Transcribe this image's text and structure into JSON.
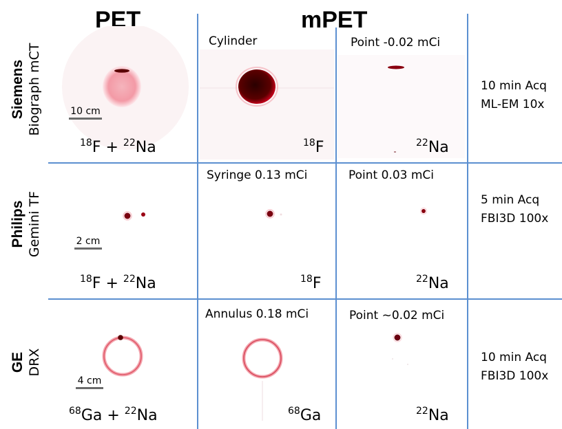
{
  "columns": {
    "pet": "PET",
    "mpet": "mPET"
  },
  "rows": [
    {
      "vendor": "Siemens",
      "model": "Biograph mCT",
      "scale": "10 cm",
      "pet_isotope": {
        "a_mass": "18",
        "a_sym": "F",
        "plus": " + ",
        "b_mass": "22",
        "b_sym": "Na"
      },
      "mpet1_title": "Cylinder",
      "mpet1_isotope": {
        "mass": "18",
        "sym": "F"
      },
      "mpet2_title": "Point -0.02 mCi",
      "mpet2_isotope": {
        "mass": "22",
        "sym": "Na"
      },
      "acq_line1": "10 min Acq",
      "acq_line2": "ML-EM 10x"
    },
    {
      "vendor": "Philips",
      "model": "Gemini TF",
      "scale": "2 cm",
      "pet_isotope": {
        "a_mass": "18",
        "a_sym": "F",
        "plus": " + ",
        "b_mass": "22",
        "b_sym": "Na"
      },
      "mpet1_title": "Syringe 0.13 mCi",
      "mpet1_isotope": {
        "mass": "18",
        "sym": "F"
      },
      "mpet2_title": "Point 0.03 mCi",
      "mpet2_isotope": {
        "mass": "22",
        "sym": "Na"
      },
      "acq_line1": "5 min Acq",
      "acq_line2": "FBI3D 100x"
    },
    {
      "vendor": "GE",
      "model": "DRX",
      "scale": "4 cm",
      "pet_isotope": {
        "a_mass": "68",
        "a_sym": "Ga",
        "plus": " + ",
        "b_mass": "22",
        "b_sym": "Na"
      },
      "mpet1_title": "Annulus 0.18 mCi",
      "mpet1_isotope": {
        "mass": "68",
        "sym": "Ga"
      },
      "mpet2_title": "Point ~0.02 mCi",
      "mpet2_isotope": {
        "mass": "22",
        "sym": "Na"
      },
      "acq_line1": "10 min Acq",
      "acq_line2": "FBI3D 100x"
    }
  ],
  "colors": {
    "grid_line": "#5b8fd0",
    "activity_dark": "#5a0000",
    "activity_mid": "#c0001a",
    "activity_light": "#f3a3ad"
  }
}
